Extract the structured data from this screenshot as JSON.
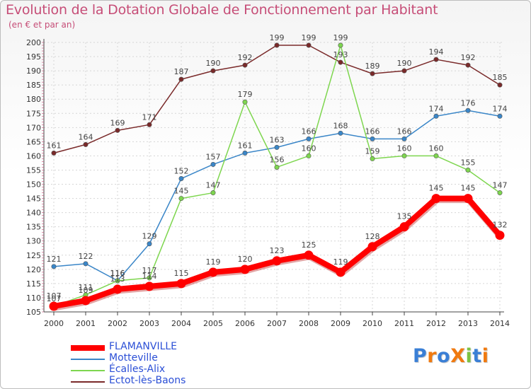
{
  "chart_data": {
    "type": "line",
    "title": "Evolution de la Dotation Globale de Fonctionnement par Habitant",
    "subtitle": "(en € et par an)",
    "xlabel": "",
    "ylabel": "",
    "ylim": [
      105,
      200
    ],
    "yticks": [
      105,
      110,
      115,
      120,
      125,
      130,
      135,
      140,
      145,
      150,
      155,
      160,
      165,
      170,
      175,
      180,
      185,
      190,
      195,
      200
    ],
    "x": [
      "2000",
      "2001",
      "2002",
      "2003",
      "2004",
      "2005",
      "2006",
      "2007",
      "2008",
      "2009",
      "2010",
      "2011",
      "2012",
      "2013",
      "2014"
    ],
    "grid": true,
    "legend_position": "bottom-left",
    "series": [
      {
        "name": "Ectot-lès-Baons",
        "color": "#7a2a2a",
        "values": [
          161,
          164,
          169,
          171,
          187,
          190,
          192,
          199,
          199,
          193,
          189,
          190,
          194,
          192,
          185
        ]
      },
      {
        "name": "Motteville",
        "color": "#3a86c8",
        "values": [
          121,
          122,
          116,
          129,
          152,
          157,
          161,
          163,
          166,
          168,
          166,
          166,
          174,
          176,
          174
        ]
      },
      {
        "name": "Écalles-Alix",
        "color": "#7ed64f",
        "values": [
          107,
          111,
          116,
          117,
          145,
          147,
          179,
          156,
          160,
          199,
          159,
          160,
          160,
          155,
          147
        ]
      },
      {
        "name": "FLAMANVILLE",
        "color": "#ff0000",
        "values": [
          107,
          109,
          113,
          114,
          115,
          119,
          120,
          123,
          125,
          119,
          128,
          135,
          145,
          145,
          132
        ]
      }
    ]
  },
  "legend": [
    {
      "label": "FLAMANVILLE",
      "color": "#ff0000"
    },
    {
      "label": "Motteville",
      "color": "#3a86c8"
    },
    {
      "label": "Écalles-Alix",
      "color": "#7ed64f"
    },
    {
      "label": "Ectot-lès-Baons",
      "color": "#7a2a2a"
    }
  ],
  "logo": {
    "text": "ProXiti",
    "letters": [
      "P",
      "r",
      "o",
      "X",
      "i",
      "t",
      "i"
    ],
    "colors": [
      "#3a7fd6",
      "#f07a10",
      "#3a7fd6",
      "#f07a10",
      "#7cc242",
      "#3a7fd6",
      "#f07a10"
    ]
  }
}
